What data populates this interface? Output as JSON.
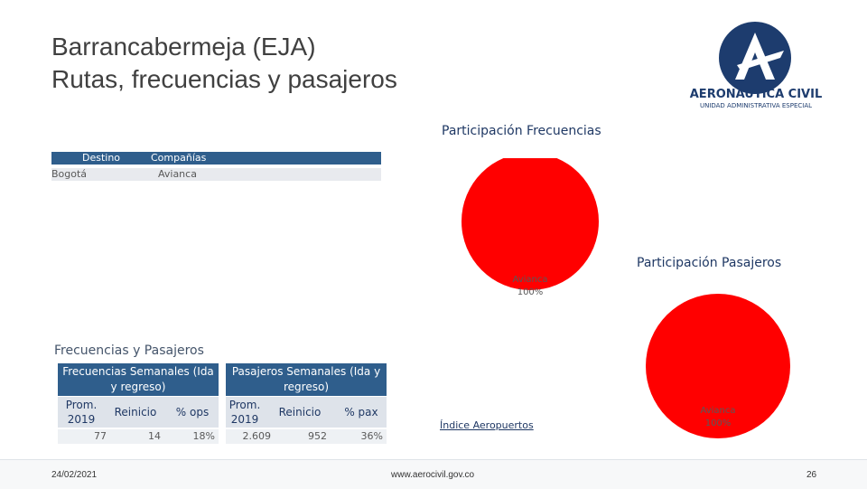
{
  "slide": {
    "title_line1": "Barrancabermeja (EJA)",
    "title_line2": "Rutas, frecuencias y pasajeros",
    "logo_main": "AERONÁUTICA CIVIL",
    "logo_sub": "UNIDAD ADMINISTRATIVA ESPECIAL"
  },
  "routes_table": {
    "headers": [
      "Destino",
      "Compañías"
    ],
    "rows": [
      {
        "destino": "Bogotá",
        "compania": "Avianca"
      }
    ]
  },
  "section_title": "Frecuencias y Pasajeros",
  "frecuencias": {
    "header": "Frecuencias Semanales (Ida y regreso)",
    "col_prom": "Prom. 2019",
    "col_reinicio": "Reinicio",
    "col_pct": "% ops",
    "prom": "77",
    "reinicio": "14",
    "pct": "18%"
  },
  "pasajeros": {
    "header": "Pasajeros Semanales (Ida y regreso)",
    "col_prom": "Prom. 2019",
    "col_reinicio": "Reinicio",
    "col_pct": "% pax",
    "prom": "2.609",
    "reinicio": "952",
    "pct": "36%"
  },
  "link_text": "Índice Aeropuertos",
  "footer": {
    "date": "24/02/2021",
    "website": "www.aerocivil.gov.co",
    "page": "26"
  },
  "colors": {
    "pie_red": "#ff0000",
    "header_blue": "#2f5e8c",
    "logo_navy": "#1d3c6e"
  },
  "chart_data": [
    {
      "type": "pie",
      "title": "Participación Frecuencias",
      "categories": [
        "Avianca"
      ],
      "values": [
        100
      ],
      "labels": [
        "Avianca",
        "100%"
      ]
    },
    {
      "type": "pie",
      "title": "Participación Pasajeros",
      "categories": [
        "Avianca"
      ],
      "values": [
        100
      ],
      "labels": [
        "Avianca",
        "100%"
      ]
    }
  ]
}
